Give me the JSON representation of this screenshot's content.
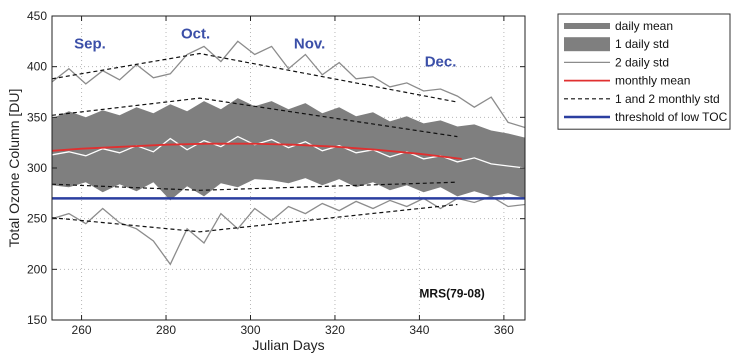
{
  "chart_data": {
    "type": "line",
    "xlabel": "Julian Days",
    "ylabel": "Total Ozone Column [DU]",
    "xlim": [
      253,
      365
    ],
    "ylim": [
      150,
      450
    ],
    "xticks": [
      260,
      280,
      300,
      320,
      340,
      360
    ],
    "yticks": [
      150,
      200,
      250,
      300,
      350,
      400,
      450
    ],
    "grid": true,
    "legend_position": "outside-right",
    "annotation": "MRS(79-08)",
    "month_labels": [
      {
        "text": "Sep.",
        "x": 262,
        "y": 418
      },
      {
        "text": "Oct.",
        "x": 287,
        "y": 428
      },
      {
        "text": "Nov.",
        "x": 314,
        "y": 418
      },
      {
        "text": "Dec.",
        "x": 345,
        "y": 400
      }
    ],
    "legend": [
      {
        "label": "daily mean",
        "style": "thick-gray"
      },
      {
        "label": "1 daily std",
        "style": "gray-fill"
      },
      {
        "label": "2 daily std",
        "style": "thin-gray"
      },
      {
        "label": "monthly mean",
        "style": "red"
      },
      {
        "label": "1 and 2 monthly std",
        "style": "dashed-black"
      },
      {
        "label": "threshold of low TOC",
        "style": "thick-blue"
      }
    ],
    "colors": {
      "band": "#7f7f7f",
      "daily_line": "#ffffff",
      "two_std_line": "#8c8c8c",
      "monthly_mean": "#e03030",
      "monthly_std": "#111111",
      "threshold": "#2b3fa0"
    },
    "series": {
      "x": [
        253,
        257,
        261,
        265,
        269,
        273,
        277,
        281,
        285,
        289,
        293,
        297,
        301,
        305,
        309,
        313,
        317,
        321,
        325,
        329,
        333,
        337,
        341,
        345,
        349,
        353,
        357,
        361,
        365
      ],
      "daily_mean": [
        313,
        316,
        312,
        319,
        315,
        322,
        316,
        329,
        318,
        327,
        321,
        331,
        323,
        328,
        320,
        326,
        317,
        322,
        315,
        318,
        311,
        316,
        309,
        312,
        306,
        310,
        304,
        302,
        300
      ],
      "daily_std_upper": [
        349,
        356,
        350,
        357,
        352,
        360,
        354,
        363,
        356,
        366,
        358,
        369,
        361,
        366,
        358,
        364,
        354,
        360,
        351,
        355,
        346,
        351,
        344,
        347,
        341,
        343,
        337,
        334,
        330
      ],
      "daily_std_lower": [
        283,
        281,
        286,
        276,
        284,
        277,
        286,
        268,
        282,
        272,
        285,
        281,
        289,
        288,
        285,
        290,
        283,
        289,
        281,
        286,
        278,
        283,
        276,
        281,
        272,
        277,
        272,
        275,
        270
      ],
      "two_std_upper": [
        385,
        398,
        383,
        396,
        387,
        402,
        389,
        393,
        412,
        420,
        405,
        425,
        412,
        420,
        398,
        412,
        392,
        404,
        388,
        390,
        380,
        384,
        376,
        378,
        371,
        360,
        370,
        345,
        340
      ],
      "two_std_lower": [
        250,
        255,
        245,
        260,
        246,
        240,
        228,
        205,
        240,
        226,
        255,
        240,
        260,
        248,
        262,
        255,
        265,
        258,
        267,
        260,
        268,
        262,
        270,
        260,
        270,
        266,
        272,
        262,
        264
      ],
      "monthly_mean_x": [
        253,
        260,
        270,
        280,
        290,
        300,
        310,
        320,
        330,
        340,
        350
      ],
      "monthly_mean": [
        317,
        319,
        321,
        323,
        324,
        324,
        323,
        321,
        318,
        314,
        309
      ],
      "monthly_1std_x": [
        253,
        288,
        349
      ],
      "monthly_1std_upper": [
        352,
        369,
        331
      ],
      "monthly_1std_lower": [
        284,
        278,
        286
      ],
      "monthly_2std_x": [
        253,
        288,
        349
      ],
      "monthly_2std_upper": [
        388,
        413,
        365
      ],
      "monthly_2std_lower": [
        251,
        237,
        264
      ],
      "threshold": 270
    }
  }
}
